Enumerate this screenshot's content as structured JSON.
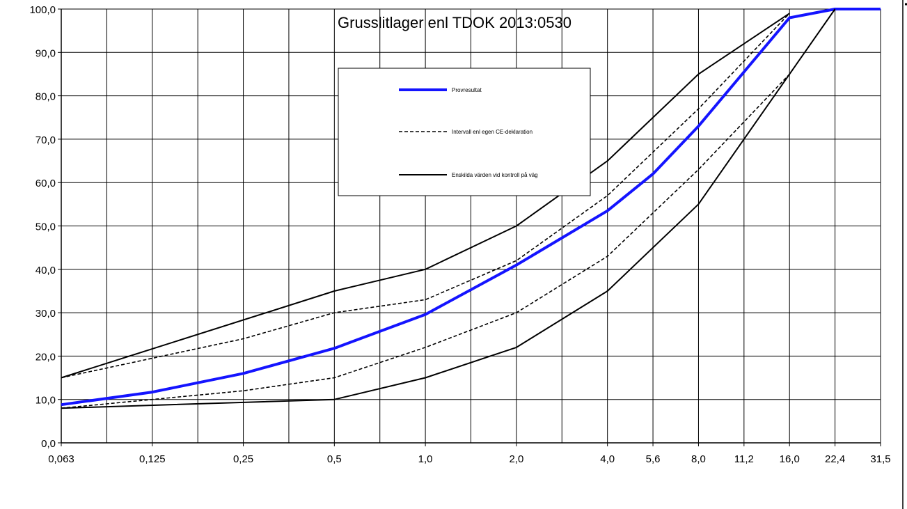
{
  "chart_data": {
    "type": "line",
    "title": "Grusslitlager enl TDOK 2013:0530",
    "xlabel": "",
    "ylabel": "",
    "x_scale": "log",
    "x_ticks": [
      "0,063",
      "0,125",
      "0,25",
      "0,5",
      "1,0",
      "2,0",
      "4,0",
      "5,6",
      "8,0",
      "11,2",
      "16,0",
      "22,4",
      "31,5"
    ],
    "y_ticks": [
      "0,0",
      "10,0",
      "20,0",
      "30,0",
      "40,0",
      "50,0",
      "60,0",
      "70,0",
      "80,0",
      "90,0",
      "100,0"
    ],
    "ylim": [
      0,
      100
    ],
    "grid": true,
    "legend_position": "top-center",
    "series": [
      {
        "name": "Enskilda värden vid kontroll på väg",
        "role": "upper",
        "style": "solid-black",
        "x": [
          0.063,
          0.5,
          1.0,
          2.0,
          4.0,
          8.0,
          16.0
        ],
        "values": [
          15,
          35,
          40,
          50,
          65,
          85,
          99
        ]
      },
      {
        "name": "Intervall enl egen CE-deklaration",
        "role": "upper",
        "style": "dashed-black",
        "x": [
          0.063,
          0.25,
          0.5,
          1.0,
          2.0,
          4.0,
          8.0,
          16.0
        ],
        "values": [
          15,
          24,
          30,
          33,
          42,
          57,
          77,
          99
        ]
      },
      {
        "name": "Provresultat",
        "style": "solid-blue",
        "x": [
          0.063,
          0.125,
          0.25,
          0.5,
          1.0,
          2.0,
          4.0,
          5.6,
          8.0,
          16.0,
          22.4,
          31.5
        ],
        "values": [
          8.8,
          11.7,
          16,
          21.8,
          29.6,
          41,
          53.5,
          62,
          73,
          98,
          100,
          100
        ]
      },
      {
        "name": "Intervall enl egen CE-deklaration",
        "role": "lower",
        "style": "dashed-black",
        "x": [
          0.063,
          0.25,
          0.5,
          1.0,
          2.0,
          4.0,
          8.0,
          16.0
        ],
        "values": [
          8,
          12,
          15,
          22,
          30,
          43,
          63,
          85
        ]
      },
      {
        "name": "Enskilda värden vid kontroll på väg",
        "role": "lower",
        "style": "solid-black",
        "x": [
          0.063,
          0.5,
          1.0,
          2.0,
          4.0,
          8.0,
          16.0,
          22.4
        ],
        "values": [
          8,
          10,
          15,
          22,
          35,
          55,
          85,
          100
        ]
      }
    ],
    "legend": [
      {
        "label": "Provresultat",
        "style": "solid-blue",
        "color": "#1414ff"
      },
      {
        "label": "Intervall enl egen CE-deklaration",
        "style": "dashed-black",
        "color": "#000000"
      },
      {
        "label": "Enskilda värden vid kontroll på väg",
        "style": "solid-black",
        "color": "#000000"
      }
    ],
    "colors": {
      "test_result": "#1414ff",
      "limits": "#000000",
      "grid": "#000000"
    }
  }
}
